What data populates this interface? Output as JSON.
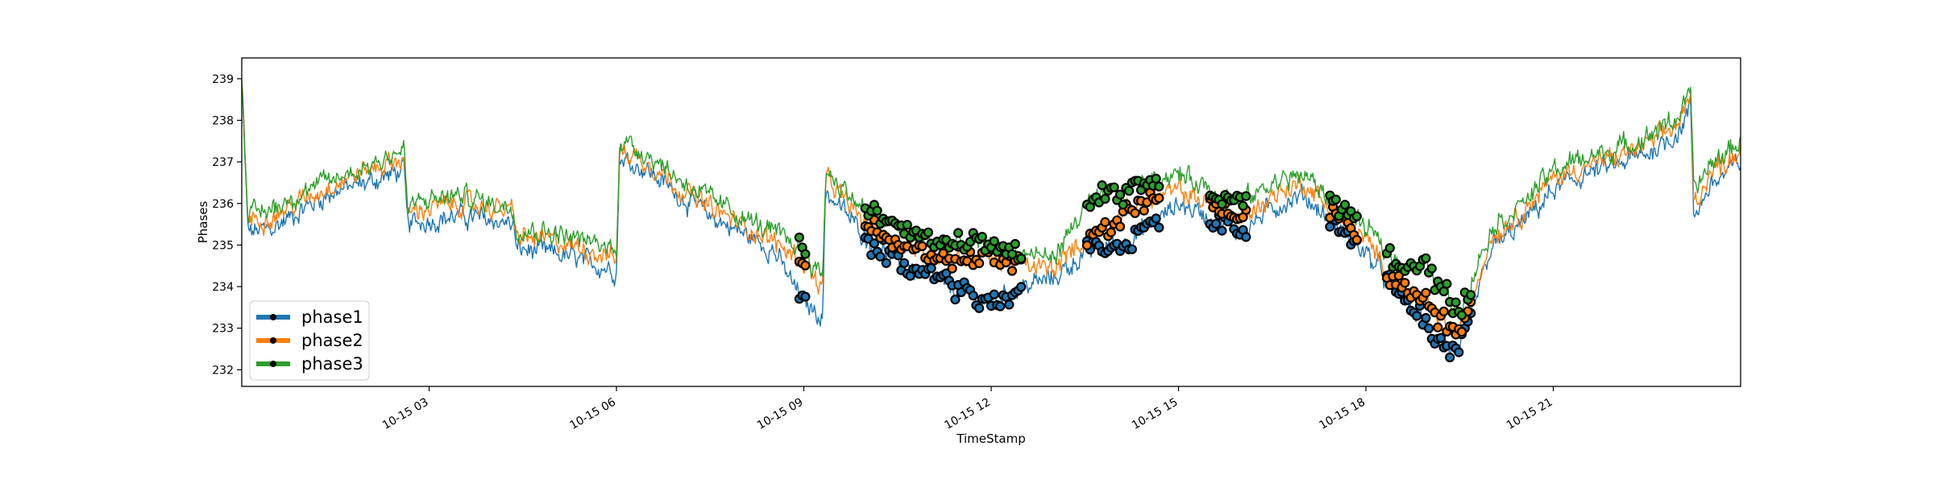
{
  "chart_data": {
    "type": "line",
    "xlabel": "TimeStamp",
    "ylabel": "Phases",
    "ylim": [
      231.6,
      239.5
    ],
    "xlim_hours": [
      0,
      24
    ],
    "grid": false,
    "legend_position": "lower-left",
    "x_ticks": [
      {
        "hour": 3,
        "label": "10-15 03"
      },
      {
        "hour": 6,
        "label": "10-15 06"
      },
      {
        "hour": 9,
        "label": "10-15 09"
      },
      {
        "hour": 12,
        "label": "10-15 12"
      },
      {
        "hour": 15,
        "label": "10-15 15"
      },
      {
        "hour": 18,
        "label": "10-15 18"
      },
      {
        "hour": 21,
        "label": "10-15 21"
      }
    ],
    "y_ticks": [
      232,
      233,
      234,
      235,
      236,
      237,
      238,
      239
    ],
    "x_hours": [
      0,
      0.1,
      0.5,
      1,
      1.5,
      2,
      2.6,
      2.65,
      3,
      3.5,
      4,
      4.35,
      4.4,
      5,
      5.5,
      6,
      6.05,
      6.5,
      7,
      7.5,
      8,
      8.5,
      9,
      9.3,
      9.35,
      10,
      10.5,
      11,
      11.5,
      12,
      12.5,
      13,
      13.5,
      14,
      14.5,
      15,
      15.5,
      16,
      16.5,
      17,
      17.5,
      18,
      18.5,
      19,
      19.5,
      20,
      20.5,
      21,
      21.5,
      22,
      22.5,
      23,
      23.2,
      23.25,
      23.5,
      24
    ],
    "series": [
      {
        "name": "phase1",
        "color": "#1f77b4",
        "values": [
          238.9,
          235.3,
          235.4,
          235.9,
          236.3,
          236.5,
          236.8,
          235.5,
          235.6,
          235.7,
          235.6,
          235.5,
          234.9,
          234.8,
          234.6,
          234.4,
          237.1,
          236.8,
          236.2,
          235.7,
          235.3,
          234.9,
          233.6,
          233.3,
          236.3,
          235.2,
          234.6,
          234.2,
          233.9,
          233.6,
          234.0,
          234.2,
          234.8,
          235.0,
          235.4,
          236.0,
          235.7,
          235.3,
          235.9,
          236.2,
          235.5,
          234.8,
          233.9,
          233.0,
          232.3,
          234.9,
          235.5,
          236.3,
          236.7,
          236.9,
          237.2,
          237.7,
          238.3,
          235.7,
          236.4,
          237.0
        ]
      },
      {
        "name": "phase2",
        "color": "#ff7f0e",
        "values": [
          239.0,
          235.6,
          235.7,
          236.1,
          236.5,
          236.8,
          237.1,
          235.8,
          235.9,
          236.0,
          235.9,
          235.8,
          235.2,
          235.1,
          234.9,
          234.7,
          237.3,
          237.0,
          236.4,
          235.9,
          235.5,
          235.1,
          234.6,
          233.9,
          236.6,
          235.5,
          235.1,
          234.8,
          234.7,
          234.7,
          234.5,
          234.4,
          235.2,
          235.6,
          236.1,
          236.3,
          236.0,
          235.6,
          236.2,
          236.5,
          235.8,
          235.1,
          234.1,
          233.5,
          232.8,
          235.2,
          235.8,
          236.6,
          236.9,
          237.1,
          237.4,
          237.9,
          238.5,
          236.0,
          236.7,
          237.3
        ]
      },
      {
        "name": "phase3",
        "color": "#2ca02c",
        "values": [
          239.2,
          235.7,
          235.9,
          236.3,
          236.6,
          236.9,
          237.3,
          235.9,
          236.1,
          236.2,
          236.0,
          235.9,
          235.4,
          235.3,
          235.1,
          234.9,
          237.5,
          237.2,
          236.6,
          236.1,
          235.7,
          235.3,
          234.9,
          234.2,
          236.8,
          235.8,
          235.4,
          235.1,
          235.0,
          235.0,
          234.8,
          234.7,
          235.9,
          236.2,
          236.6,
          236.7,
          236.4,
          236.0,
          236.5,
          236.7,
          236.0,
          235.4,
          234.6,
          234.4,
          233.4,
          235.4,
          236.0,
          236.8,
          237.1,
          237.3,
          237.6,
          238.1,
          238.7,
          236.2,
          236.9,
          237.5
        ]
      }
    ],
    "marker_spans_hours": [
      [
        8.9,
        9.05
      ],
      [
        9.95,
        12.5
      ],
      [
        13.5,
        14.7
      ],
      [
        15.5,
        16.1
      ],
      [
        17.4,
        17.9
      ],
      [
        18.3,
        19.7
      ]
    ]
  }
}
